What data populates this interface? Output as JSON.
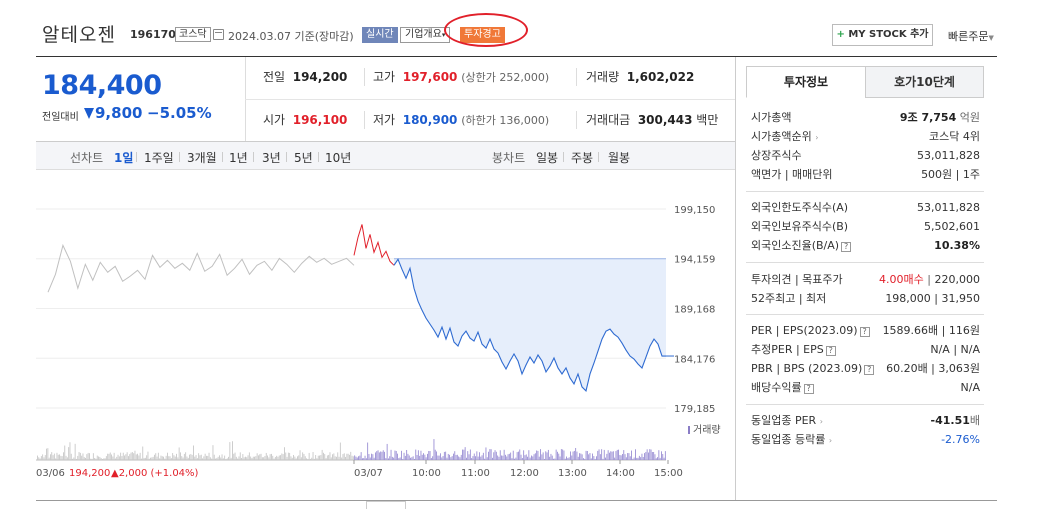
{
  "header": {
    "stock_name": "알테오젠",
    "stock_code": "196170",
    "market_tag": "코스닥",
    "date": "2024.03.07",
    "date_basis": "기준(장마감)",
    "realtime_label": "실시간",
    "company_label": "기업개요",
    "warning_label": "투자경고",
    "mystock_label": "MY STOCK 추가",
    "mystock_plus": "+",
    "quick_order_label": "빠른주문",
    "colors": {
      "price_down": "#1a5bcf",
      "price_up": "#e1202a",
      "warning_badge": "#f07838",
      "realtime_badge": "#6f86b9"
    }
  },
  "price": {
    "current": "184,400",
    "change_label": "전일대비",
    "change_value": "9,800",
    "change_pct": "−5.05%",
    "direction": "down"
  },
  "quote": {
    "prev_label": "전일",
    "prev": "194,200",
    "high_label": "고가",
    "high": "197,600",
    "upper_limit": "(상한가 252,000)",
    "volume_label": "거래량",
    "volume": "1,602,022",
    "open_label": "시가",
    "open": "196,100",
    "low_label": "저가",
    "low": "180,900",
    "lower_limit": "(하한가 136,000)",
    "amount_label": "거래대금",
    "amount": "300,443",
    "amount_unit": "백만"
  },
  "periods": {
    "line_label": "선차트",
    "line_items": [
      "1일",
      "1주일",
      "3개월",
      "1년",
      "3년",
      "5년",
      "10년"
    ],
    "active": "1일",
    "candle_label": "봉차트",
    "candle_items": [
      "일봉",
      "주봉",
      "월봉"
    ]
  },
  "chart_data": {
    "type": "line",
    "y_ticks": [
      "199,150",
      "194,159",
      "189,168",
      "184,176",
      "179,185"
    ],
    "ylim": [
      179185,
      199150
    ],
    "x_ticks": [
      "03/07",
      "10:00",
      "11:00",
      "12:00",
      "13:00",
      "14:00",
      "15:00"
    ],
    "prev_day_label": "03/06",
    "prev_close_text": "194,200",
    "prev_change_text": "▲2,000 (+1.04%)",
    "volume_legend": "거래량",
    "reference_price": 194159,
    "prev_day_series": [
      190800,
      192600,
      195500,
      193900,
      191200,
      193600,
      192000,
      193800,
      192800,
      193400,
      191900,
      192400,
      193000,
      192100,
      194500,
      193300,
      194000,
      193200,
      193700,
      193000,
      194700,
      192900,
      193400,
      194600,
      192500,
      193200,
      194100,
      192600,
      193500,
      193900,
      193000,
      194200,
      193600,
      192800,
      193700,
      194400,
      193800,
      194200,
      193600,
      193900,
      194200,
      193500
    ],
    "today_series": [
      194500,
      196300,
      197600,
      195200,
      196600,
      194800,
      195800,
      194300,
      194900,
      193900,
      193500,
      194100,
      193100,
      192200,
      193200,
      191200,
      189900,
      189000,
      188200,
      187600,
      187000,
      186300,
      187300,
      186100,
      187200,
      185800,
      185400,
      186400,
      186900,
      186200,
      185900,
      186800,
      185600,
      185200,
      186100,
      185100,
      184700,
      183800,
      183100,
      183900,
      184600,
      183900,
      182600,
      183500,
      184300,
      183700,
      184500,
      183900,
      182800,
      183400,
      184200,
      183200,
      182600,
      183200,
      182200,
      181600,
      182600,
      181300,
      180900,
      182600,
      183700,
      184900,
      186100,
      186900,
      187100,
      186600,
      186300,
      185700,
      185000,
      184400,
      184100,
      183600,
      183200,
      184300,
      185400,
      186100,
      185600,
      184400,
      184400
    ]
  },
  "right_panel": {
    "tab_active": "투자정보",
    "tab_other": "호가10단계",
    "rows": [
      {
        "label": "시가총액",
        "value": "9조 7,754",
        "unit": "억원"
      },
      {
        "label": "시가총액순위",
        "value": "코스닥 4위"
      },
      {
        "label": "상장주식수",
        "value": "53,011,828"
      },
      {
        "label": "액면가 | 매매단위",
        "value": "500원 | 1주"
      },
      {
        "label": "외국인한도주식수(A)",
        "value": "53,011,828"
      },
      {
        "label": "외국인보유주식수(B)",
        "value": "5,502,601"
      },
      {
        "label": "외국인소진율(B/A)",
        "value": "10.38%"
      },
      {
        "label": "투자의견 | 목표주가",
        "opinion": "4.00매수",
        "target": "220,000"
      },
      {
        "label": "52주최고 | 최저",
        "value": "198,000 | 31,950"
      },
      {
        "label": "PER | EPS(2023.09)",
        "value": "1589.66배 | 116원"
      },
      {
        "label": "추정PER | EPS",
        "value": "N/A | N/A"
      },
      {
        "label": "PBR | BPS (2023.09)",
        "value": "60.20배 | 3,063원"
      },
      {
        "label": "배당수익률",
        "value": "N/A"
      },
      {
        "label": "동일업종 PER",
        "value": "-41.51",
        "unit": "배"
      },
      {
        "label": "동일업종 등락률",
        "value": "-2.76%"
      }
    ]
  }
}
